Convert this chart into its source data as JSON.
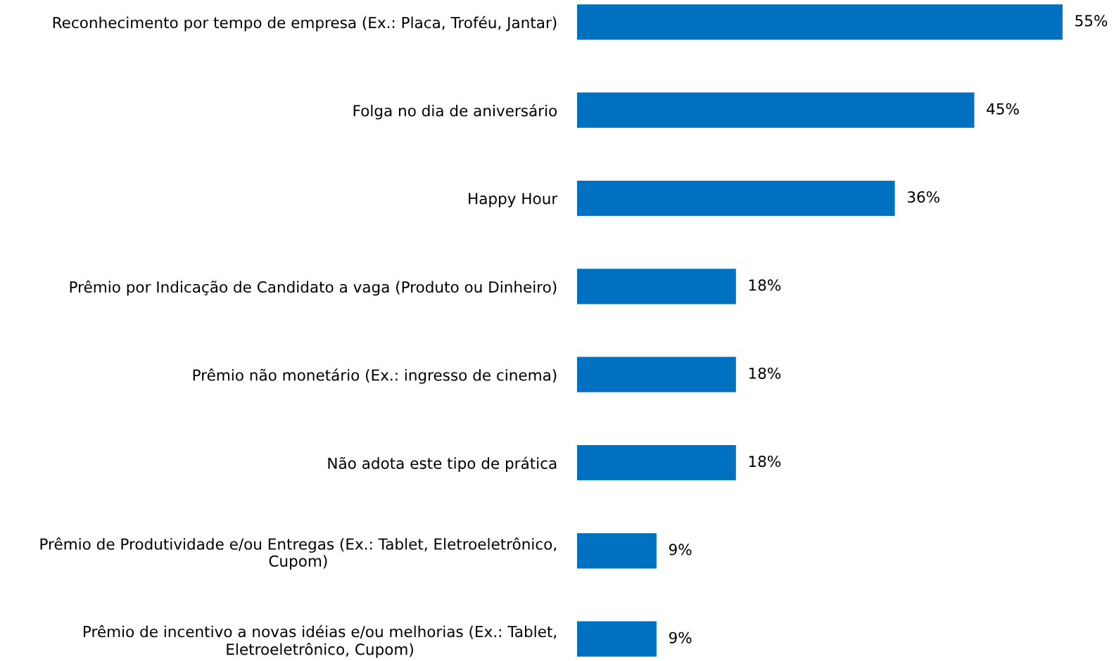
{
  "chart_data": {
    "type": "bar",
    "orientation": "horizontal",
    "categories": [
      "Reconhecimento por tempo de empresa (Ex.: Placa, Troféu, Jantar)",
      "Folga no dia de aniversário",
      "Happy Hour",
      "Prêmio por Indicação de Candidato a vaga (Produto ou Dinheiro)",
      "Prêmio não monetário (Ex.: ingresso de cinema)",
      "Não adota este tipo de prática",
      "Prêmio de Produtividade e/ou Entregas (Ex.: Tablet, Eletroeletrônico,\nCupom)",
      "Prêmio de incentivo a novas idéias e/ou melhorias (Ex.: Tablet,\nEletroeletrônico, Cupom)"
    ],
    "values": [
      55,
      45,
      36,
      18,
      18,
      18,
      9,
      9
    ],
    "value_labels": [
      "55%",
      "45%",
      "36%",
      "18%",
      "18%",
      "18%",
      "9%",
      "9%"
    ],
    "color": "#0070c0",
    "tick_labels": "y",
    "grid": false
  }
}
